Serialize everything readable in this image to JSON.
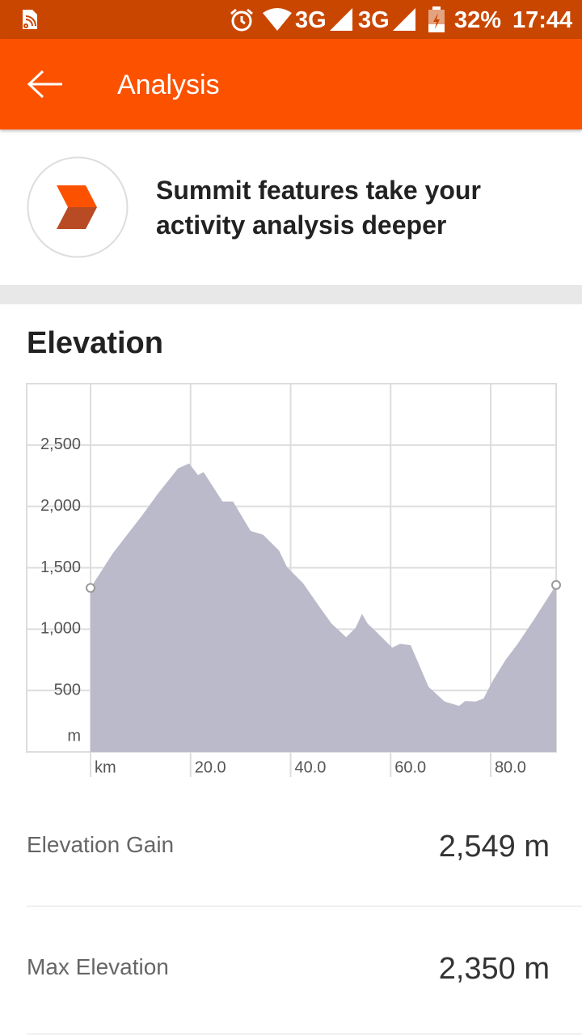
{
  "status_bar": {
    "network_1": "3G",
    "network_2": "3G",
    "battery": "32%",
    "time": "17:44"
  },
  "app_bar": {
    "title": "Analysis"
  },
  "promo": {
    "text": "Summit features take your activity analysis deeper"
  },
  "chart_data": {
    "type": "area",
    "title": "Elevation",
    "x": [
      0,
      4.5,
      10.2,
      13.4,
      17.5,
      19.7,
      21.5,
      22.6,
      26.4,
      28.5,
      32.0,
      34.5,
      37.7,
      39.3,
      42.5,
      45.8,
      48.2,
      51.1,
      53.0,
      54.3,
      55.4,
      57.1,
      60.3,
      61.9,
      64.0,
      67.6,
      70.8,
      73.7,
      74.9,
      77.0,
      78.6,
      80.5,
      83.0,
      85.4,
      88.6,
      93.1
    ],
    "values": [
      1336,
      1620,
      1920,
      2100,
      2310,
      2350,
      2255,
      2280,
      2040,
      2040,
      1800,
      1770,
      1640,
      1505,
      1375,
      1180,
      1045,
      935,
      1010,
      1125,
      1045,
      980,
      850,
      880,
      870,
      530,
      410,
      375,
      415,
      410,
      435,
      585,
      750,
      880,
      1075,
      1360
    ],
    "color": "#babaca",
    "xlim": [
      0,
      93.1
    ],
    "ylim": [
      0,
      3000
    ],
    "xticks": [
      {
        "value": 0,
        "label": "km"
      },
      {
        "value": 20,
        "label": "20.0"
      },
      {
        "value": 40,
        "label": "40.0"
      },
      {
        "value": 60,
        "label": "60.0"
      },
      {
        "value": 80,
        "label": "80.0"
      }
    ],
    "yticks": [
      {
        "value": 0,
        "label": "m"
      },
      {
        "value": 500,
        "label": "500"
      },
      {
        "value": 1000,
        "label": "1,000"
      },
      {
        "value": 1500,
        "label": "1,500"
      },
      {
        "value": 2000,
        "label": "2,000"
      },
      {
        "value": 2500,
        "label": "2,500"
      }
    ],
    "grid": true
  },
  "stats": [
    {
      "label": "Elevation Gain",
      "value": "2,549 m"
    },
    {
      "label": "Max Elevation",
      "value": "2,350 m"
    }
  ]
}
